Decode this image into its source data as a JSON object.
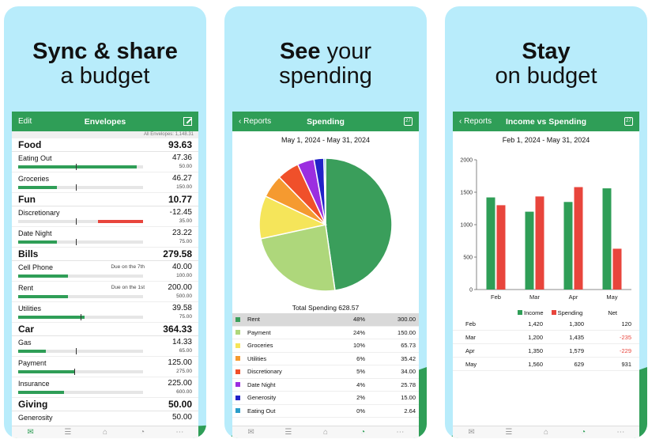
{
  "colors": {
    "green": "#2f9e57",
    "red": "#e8453c",
    "sky": "#b8ecfb"
  },
  "panel1": {
    "headline_bold_1": "Sync & share",
    "headline_2": "a budget",
    "nav": {
      "left": "Edit",
      "title": "Envelopes",
      "right_icon": "compose-icon"
    },
    "all_envelopes": "All Envelopes: 1,148.31",
    "groups": [
      {
        "name": "Food",
        "total": "93.63",
        "items": [
          {
            "name": "Eating Out",
            "amount": "47.36",
            "budget": "50.00",
            "due": "",
            "fill": 0.95,
            "tick": 0.46,
            "negative": false
          },
          {
            "name": "Groceries",
            "amount": "46.27",
            "budget": "150.00",
            "due": "",
            "fill": 0.31,
            "tick": 0.46,
            "negative": false
          }
        ]
      },
      {
        "name": "Fun",
        "total": "10.77",
        "items": [
          {
            "name": "Discretionary",
            "amount": "-12.45",
            "budget": "35.00",
            "due": "",
            "fill": 0.36,
            "tick": 0.46,
            "negative": true
          },
          {
            "name": "Date Night",
            "amount": "23.22",
            "budget": "75.00",
            "due": "",
            "fill": 0.31,
            "tick": 0.46,
            "negative": false
          }
        ]
      },
      {
        "name": "Bills",
        "total": "279.58",
        "items": [
          {
            "name": "Cell Phone",
            "amount": "40.00",
            "budget": "100.00",
            "due": "Due on the 7th",
            "fill": 0.4,
            "tick": null,
            "negative": false
          },
          {
            "name": "Rent",
            "amount": "200.00",
            "budget": "500.00",
            "due": "Due on the 1st",
            "fill": 0.4,
            "tick": null,
            "negative": false
          },
          {
            "name": "Utilities",
            "amount": "39.58",
            "budget": "75.00",
            "due": "",
            "fill": 0.53,
            "tick": 0.5,
            "negative": false
          }
        ]
      },
      {
        "name": "Car",
        "total": "364.33",
        "items": [
          {
            "name": "Gas",
            "amount": "14.33",
            "budget": "65.00",
            "due": "",
            "fill": 0.22,
            "tick": 0.46,
            "negative": false
          },
          {
            "name": "Payment",
            "amount": "125.00",
            "budget": "275.00",
            "due": "",
            "fill": 0.45,
            "tick": 0.45,
            "negative": false
          },
          {
            "name": "Insurance",
            "amount": "225.00",
            "budget": "600.00",
            "due": "",
            "fill": 0.37,
            "tick": null,
            "negative": false
          }
        ]
      },
      {
        "name": "Giving",
        "total": "50.00",
        "items": [
          {
            "name": "Generosity",
            "amount": "50.00",
            "budget": "",
            "due": "",
            "fill": 0,
            "tick": null,
            "negative": false
          }
        ]
      }
    ]
  },
  "panel2": {
    "headline_bold_1": "See",
    "headline_1_rest": " your",
    "headline_2": "spending",
    "nav": {
      "back": "Reports",
      "title": "Spending",
      "right_icon": "calendar-icon",
      "cal_text": "27"
    },
    "range": "May 1, 2024 - May 31, 2024",
    "total": "Total Spending 628.57",
    "categories": [
      {
        "name": "Rent",
        "pct": "48%",
        "amount": "300.00",
        "value": 300.0,
        "color": "#3a9e5b"
      },
      {
        "name": "Payment",
        "pct": "24%",
        "amount": "150.00",
        "value": 150.0,
        "color": "#aed77b"
      },
      {
        "name": "Groceries",
        "pct": "10%",
        "amount": "65.73",
        "value": 65.73,
        "color": "#f5e55a"
      },
      {
        "name": "Utilities",
        "pct": "6%",
        "amount": "35.42",
        "value": 35.42,
        "color": "#f59a30"
      },
      {
        "name": "Discretionary",
        "pct": "5%",
        "amount": "34.00",
        "value": 34.0,
        "color": "#f0502a"
      },
      {
        "name": "Date Night",
        "pct": "4%",
        "amount": "25.78",
        "value": 25.78,
        "color": "#9b2ee0"
      },
      {
        "name": "Generosity",
        "pct": "2%",
        "amount": "15.00",
        "value": 15.0,
        "color": "#2222c8"
      },
      {
        "name": "Eating Out",
        "pct": "0%",
        "amount": "2.64",
        "value": 2.64,
        "color": "#2a9dc9"
      }
    ]
  },
  "panel3": {
    "headline_bold_1": "Stay",
    "headline_2": "on budget",
    "nav": {
      "back": "Reports",
      "title": "Income vs Spending",
      "right_icon": "calendar-icon",
      "cal_text": "27"
    },
    "range": "Feb 1, 2024 - May 31, 2024",
    "legend": {
      "income": "Income",
      "spending": "Spending",
      "net": "Net"
    },
    "rows": [
      {
        "month": "Feb",
        "income": "1,420",
        "spending": "1,300",
        "net": "120",
        "neg": false
      },
      {
        "month": "Mar",
        "income": "1,200",
        "spending": "1,435",
        "net": "-235",
        "neg": true
      },
      {
        "month": "Apr",
        "income": "1,350",
        "spending": "1,579",
        "net": "-229",
        "neg": true
      },
      {
        "month": "May",
        "income": "1,560",
        "spending": "629",
        "net": "931",
        "neg": false
      }
    ]
  },
  "chart_data": [
    {
      "type": "pie",
      "title": "",
      "categories": [
        "Rent",
        "Payment",
        "Groceries",
        "Utilities",
        "Discretionary",
        "Date Night",
        "Generosity",
        "Eating Out"
      ],
      "values": [
        300.0,
        150.0,
        65.73,
        35.42,
        34.0,
        25.78,
        15.0,
        2.64
      ]
    },
    {
      "type": "bar",
      "title": "",
      "categories": [
        "Feb",
        "Mar",
        "Apr",
        "May"
      ],
      "series": [
        {
          "name": "Income",
          "values": [
            1420,
            1200,
            1350,
            1560
          ],
          "color": "#2f9e57"
        },
        {
          "name": "Spending",
          "values": [
            1300,
            1435,
            1579,
            629
          ],
          "color": "#e8453c"
        }
      ],
      "yticks": [
        "0",
        "500",
        "1000",
        "1500",
        "2000"
      ],
      "ylim": [
        0,
        2000
      ],
      "grid": false,
      "legend": "bottom"
    }
  ],
  "tabs": [
    {
      "label": "Envelopes",
      "icon": "envelopes-icon",
      "glyph": "✉"
    },
    {
      "label": "Transactions",
      "icon": "transactions-icon",
      "glyph": "☰"
    },
    {
      "label": "Accounts",
      "icon": "accounts-icon",
      "glyph": "⌂"
    },
    {
      "label": "Reports",
      "icon": "reports-icon",
      "glyph": "◔"
    },
    {
      "label": "More",
      "icon": "more-icon",
      "glyph": "⋯"
    }
  ]
}
